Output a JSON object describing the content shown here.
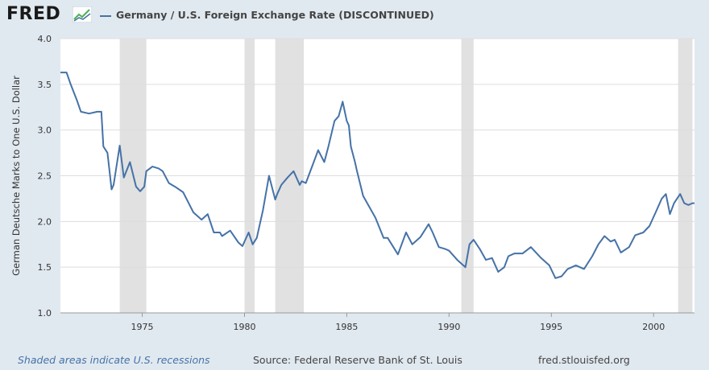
{
  "header": {
    "logo_text": "FRED",
    "legend_label": "Germany / U.S. Foreign Exchange Rate (DISCONTINUED)"
  },
  "footer": {
    "recession_note": "Shaded areas indicate U.S. recessions",
    "source": "Source: Federal Reserve Bank of St. Louis",
    "url": "fred.stlouisfed.org"
  },
  "colors": {
    "line": "#4572a7",
    "recession": "#e1e1e1",
    "background": "#e1e9f0",
    "plot": "#ffffff"
  },
  "chart_data": {
    "type": "line",
    "ylabel": "German Deutsche Marks to One U.S. Dollar",
    "xlabel": "",
    "xlim": [
      1971.0,
      2002.0
    ],
    "ylim": [
      1.0,
      4.0
    ],
    "x_ticks": [
      1975,
      1980,
      1985,
      1990,
      1995,
      2000
    ],
    "y_ticks": [
      "1.0",
      "1.5",
      "2.0",
      "2.5",
      "3.0",
      "3.5",
      "4.0"
    ],
    "recessions": [
      [
        1973.9,
        1975.2
      ],
      [
        1980.0,
        1980.5
      ],
      [
        1981.5,
        1982.9
      ],
      [
        1990.6,
        1991.2
      ],
      [
        2001.2,
        2001.9
      ]
    ],
    "series": [
      {
        "x": [
          1971.0,
          1971.3,
          1971.5,
          1971.8,
          1972.0,
          1972.4,
          1972.8,
          1973.0,
          1973.1,
          1973.3,
          1973.5,
          1973.6,
          1973.9,
          1974.1,
          1974.4,
          1974.7,
          1974.9,
          1975.1,
          1975.2,
          1975.5,
          1975.8,
          1976.0,
          1976.3,
          1976.6,
          1977.0,
          1977.5,
          1977.9,
          1978.2,
          1978.5,
          1978.8,
          1978.9,
          1979.3,
          1979.7,
          1979.9,
          1980.2,
          1980.4,
          1980.6,
          1980.9,
          1981.2,
          1981.5,
          1981.6,
          1981.8,
          1982.1,
          1982.4,
          1982.7,
          1982.8,
          1983.0,
          1983.3,
          1983.6,
          1983.9,
          1984.1,
          1984.4,
          1984.6,
          1984.8,
          1985.0,
          1985.1,
          1985.2,
          1985.4,
          1985.5,
          1985.8,
          1986.0,
          1986.4,
          1986.8,
          1987.0,
          1987.5,
          1987.9,
          1988.2,
          1988.6,
          1989.0,
          1989.2,
          1989.5,
          1989.8,
          1990.0,
          1990.4,
          1990.8,
          1991.0,
          1991.2,
          1991.5,
          1991.8,
          1992.1,
          1992.4,
          1992.7,
          1992.9,
          1993.2,
          1993.6,
          1994.0,
          1994.5,
          1994.9,
          1995.2,
          1995.5,
          1995.8,
          1996.2,
          1996.6,
          1997.0,
          1997.3,
          1997.6,
          1997.9,
          1998.1,
          1998.4,
          1998.8,
          1999.1,
          1999.5,
          1999.8,
          2000.1,
          2000.4,
          2000.6,
          2000.8,
          2001.0,
          2001.3,
          2001.5,
          2001.7,
          2001.9,
          2002.0
        ],
        "values": [
          3.63,
          3.63,
          3.5,
          3.33,
          3.2,
          3.18,
          3.2,
          3.2,
          2.82,
          2.75,
          2.35,
          2.4,
          2.83,
          2.48,
          2.65,
          2.38,
          2.33,
          2.38,
          2.55,
          2.6,
          2.58,
          2.55,
          2.42,
          2.38,
          2.32,
          2.1,
          2.02,
          2.08,
          1.88,
          1.88,
          1.84,
          1.9,
          1.77,
          1.73,
          1.88,
          1.75,
          1.82,
          2.12,
          2.5,
          2.24,
          2.3,
          2.4,
          2.48,
          2.55,
          2.4,
          2.44,
          2.42,
          2.6,
          2.78,
          2.65,
          2.82,
          3.1,
          3.15,
          3.31,
          3.1,
          3.05,
          2.82,
          2.65,
          2.55,
          2.28,
          2.2,
          2.04,
          1.82,
          1.82,
          1.64,
          1.88,
          1.75,
          1.83,
          1.97,
          1.88,
          1.72,
          1.7,
          1.68,
          1.58,
          1.5,
          1.75,
          1.8,
          1.7,
          1.58,
          1.6,
          1.45,
          1.5,
          1.62,
          1.65,
          1.65,
          1.72,
          1.6,
          1.52,
          1.38,
          1.4,
          1.48,
          1.52,
          1.48,
          1.62,
          1.75,
          1.84,
          1.78,
          1.8,
          1.66,
          1.72,
          1.85,
          1.88,
          1.95,
          2.1,
          2.25,
          2.3,
          2.08,
          2.2,
          2.3,
          2.2,
          2.18,
          2.2,
          2.2
        ]
      }
    ]
  }
}
